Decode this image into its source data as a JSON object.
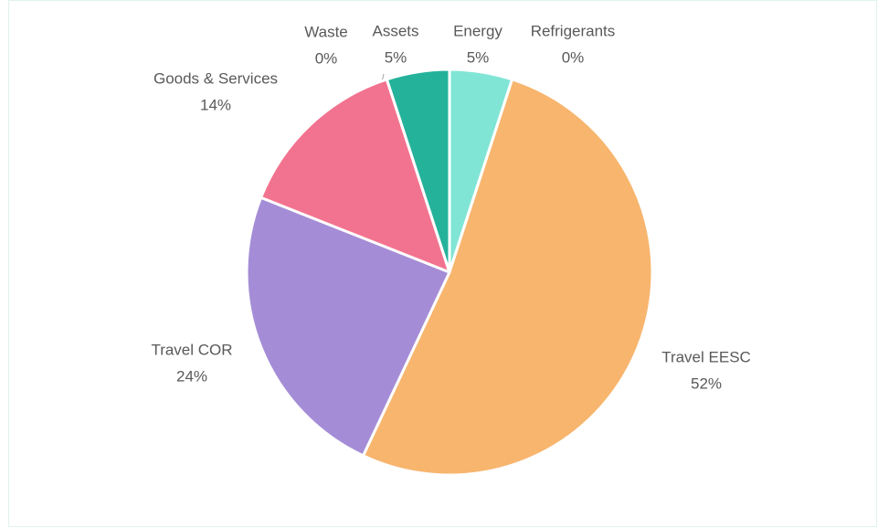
{
  "chart_data": {
    "type": "pie",
    "categories": [
      "Energy",
      "Refrigerants",
      "Travel EESC",
      "Travel COR",
      "Goods & Services",
      "Waste",
      "Assets"
    ],
    "values": [
      5,
      0,
      52,
      24,
      14,
      0,
      5
    ],
    "value_labels": [
      "5%",
      "0%",
      "52%",
      "24%",
      "14%",
      "0%",
      "5%"
    ],
    "colors": [
      "#81e5d5",
      "#5b9bd5",
      "#f7b56e",
      "#a48dd6",
      "#f2738f",
      "#c9c9c9",
      "#25b29b"
    ]
  }
}
